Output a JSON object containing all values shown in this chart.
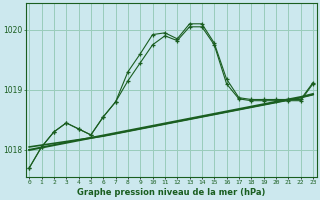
{
  "title": "Graphe pression niveau de la mer (hPa)",
  "bg_color": "#cce8ee",
  "grid_color": "#99ccbb",
  "line_color": "#1a5e20",
  "x_labels": [
    "0",
    "1",
    "2",
    "3",
    "4",
    "5",
    "6",
    "7",
    "8",
    "9",
    "10",
    "11",
    "12",
    "13",
    "14",
    "15",
    "16",
    "17",
    "18",
    "19",
    "20",
    "21",
    "22",
    "23"
  ],
  "ylim": [
    1017.55,
    1020.45
  ],
  "yticks": [
    1018,
    1019,
    1020
  ],
  "main_series": [
    1017.7,
    1018.05,
    1018.3,
    1018.45,
    1018.35,
    1018.25,
    1018.55,
    1018.8,
    1019.15,
    1019.45,
    1019.75,
    1019.9,
    1019.82,
    1020.05,
    1020.05,
    1019.75,
    1019.1,
    1018.85,
    1018.82,
    1018.82,
    1018.82,
    1018.82,
    1018.82,
    1019.1
  ],
  "upper_series": [
    1017.7,
    1018.05,
    1018.3,
    1018.45,
    1018.35,
    1018.25,
    1018.55,
    1018.8,
    1019.3,
    1019.6,
    1019.92,
    1019.95,
    1019.85,
    1020.1,
    1020.1,
    1019.78,
    1019.18,
    1018.87,
    1018.84,
    1018.84,
    1018.84,
    1018.84,
    1018.84,
    1019.12
  ],
  "lower_trend": [
    1018.05,
    1018.08,
    1018.11,
    1018.14,
    1018.17,
    1018.2,
    1018.23,
    1018.27,
    1018.31,
    1018.35,
    1018.39,
    1018.43,
    1018.47,
    1018.51,
    1018.55,
    1018.59,
    1018.63,
    1018.67,
    1018.71,
    1018.75,
    1018.79,
    1018.83,
    1018.87,
    1018.92
  ],
  "mid_trend": [
    1018.0,
    1018.04,
    1018.08,
    1018.12,
    1018.16,
    1018.2,
    1018.24,
    1018.28,
    1018.32,
    1018.36,
    1018.4,
    1018.44,
    1018.48,
    1018.52,
    1018.56,
    1018.6,
    1018.64,
    1018.68,
    1018.72,
    1018.76,
    1018.8,
    1018.84,
    1018.88,
    1018.93
  ]
}
